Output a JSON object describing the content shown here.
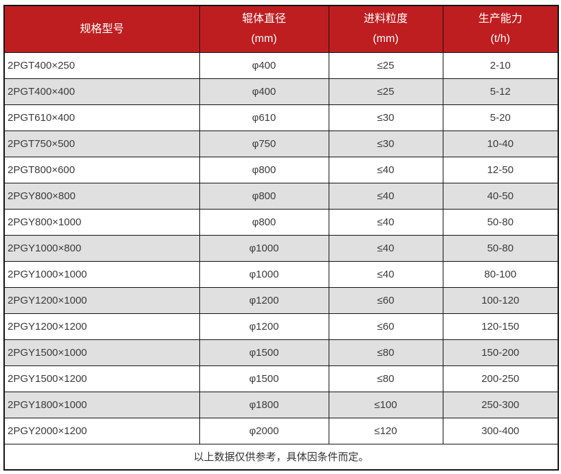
{
  "colors": {
    "header_bg": "#be1e20",
    "header_text": "#ffffff",
    "row_bg": "#ffffff",
    "row_alt_bg": "#e0e0e0",
    "border": "#111111",
    "body_text": "#3a3a3a"
  },
  "table": {
    "columns": [
      {
        "title": "规格型号",
        "unit": ""
      },
      {
        "title": "辊体直径",
        "unit": "(mm)"
      },
      {
        "title": "进料粒度",
        "unit": "(mm)"
      },
      {
        "title": "生产能力",
        "unit": "(t/h)"
      }
    ],
    "rows": [
      [
        "2PGT400×250",
        "φ400",
        "≤25",
        "2-10"
      ],
      [
        "2PGT400×400",
        "φ400",
        "≤25",
        "5-12"
      ],
      [
        "2PGT610×400",
        "φ610",
        "≤30",
        "5-20"
      ],
      [
        "2PGT750×500",
        "φ750",
        "≤30",
        "10-40"
      ],
      [
        "2PGT800×600",
        "φ800",
        "≤40",
        "12-50"
      ],
      [
        "2PGY800×800",
        "φ800",
        "≤40",
        "40-50"
      ],
      [
        "2PGY800×1000",
        "φ800",
        "≤40",
        "50-80"
      ],
      [
        "2PGY1000×800",
        "φ1000",
        "≤40",
        "50-80"
      ],
      [
        "2PGY1000×1000",
        "φ1000",
        "≤40",
        "80-100"
      ],
      [
        "2PGY1200×1000",
        "φ1200",
        "≤60",
        "100-120"
      ],
      [
        "2PGY1200×1200",
        "φ1200",
        "≤60",
        "120-150"
      ],
      [
        "2PGY1500×1000",
        "φ1500",
        "≤80",
        "150-200"
      ],
      [
        "2PGY1500×1200",
        "φ1500",
        "≤80",
        "200-250"
      ],
      [
        "2PGY1800×1000",
        "φ1800",
        "≤100",
        "250-300"
      ],
      [
        "2PGY2000×1200",
        "φ2000",
        "≤120",
        "300-400"
      ]
    ],
    "footer_note": "以上数据仅供参考，具体因条件而定。"
  },
  "chart_data": {
    "type": "table",
    "title": "",
    "columns": [
      "规格型号",
      "辊体直径 (mm)",
      "进料粒度 (mm)",
      "生产能力 (t/h)"
    ],
    "rows": [
      [
        "2PGT400×250",
        "φ400",
        "≤25",
        "2-10"
      ],
      [
        "2PGT400×400",
        "φ400",
        "≤25",
        "5-12"
      ],
      [
        "2PGT610×400",
        "φ610",
        "≤30",
        "5-20"
      ],
      [
        "2PGT750×500",
        "φ750",
        "≤30",
        "10-40"
      ],
      [
        "2PGT800×600",
        "φ800",
        "≤40",
        "12-50"
      ],
      [
        "2PGY800×800",
        "φ800",
        "≤40",
        "40-50"
      ],
      [
        "2PGY800×1000",
        "φ800",
        "≤40",
        "50-80"
      ],
      [
        "2PGY1000×800",
        "φ1000",
        "≤40",
        "50-80"
      ],
      [
        "2PGY1000×1000",
        "φ1000",
        "≤40",
        "80-100"
      ],
      [
        "2PGY1200×1000",
        "φ1200",
        "≤60",
        "100-120"
      ],
      [
        "2PGY1200×1200",
        "φ1200",
        "≤60",
        "120-150"
      ],
      [
        "2PGY1500×1000",
        "φ1500",
        "≤80",
        "150-200"
      ],
      [
        "2PGY1500×1200",
        "φ1500",
        "≤80",
        "200-250"
      ],
      [
        "2PGY1800×1000",
        "φ1800",
        "≤100",
        "250-300"
      ],
      [
        "2PGY2000×1200",
        "φ2000",
        "≤120",
        "300-400"
      ]
    ],
    "footnote": "以上数据仅供参考，具体因条件而定。"
  }
}
